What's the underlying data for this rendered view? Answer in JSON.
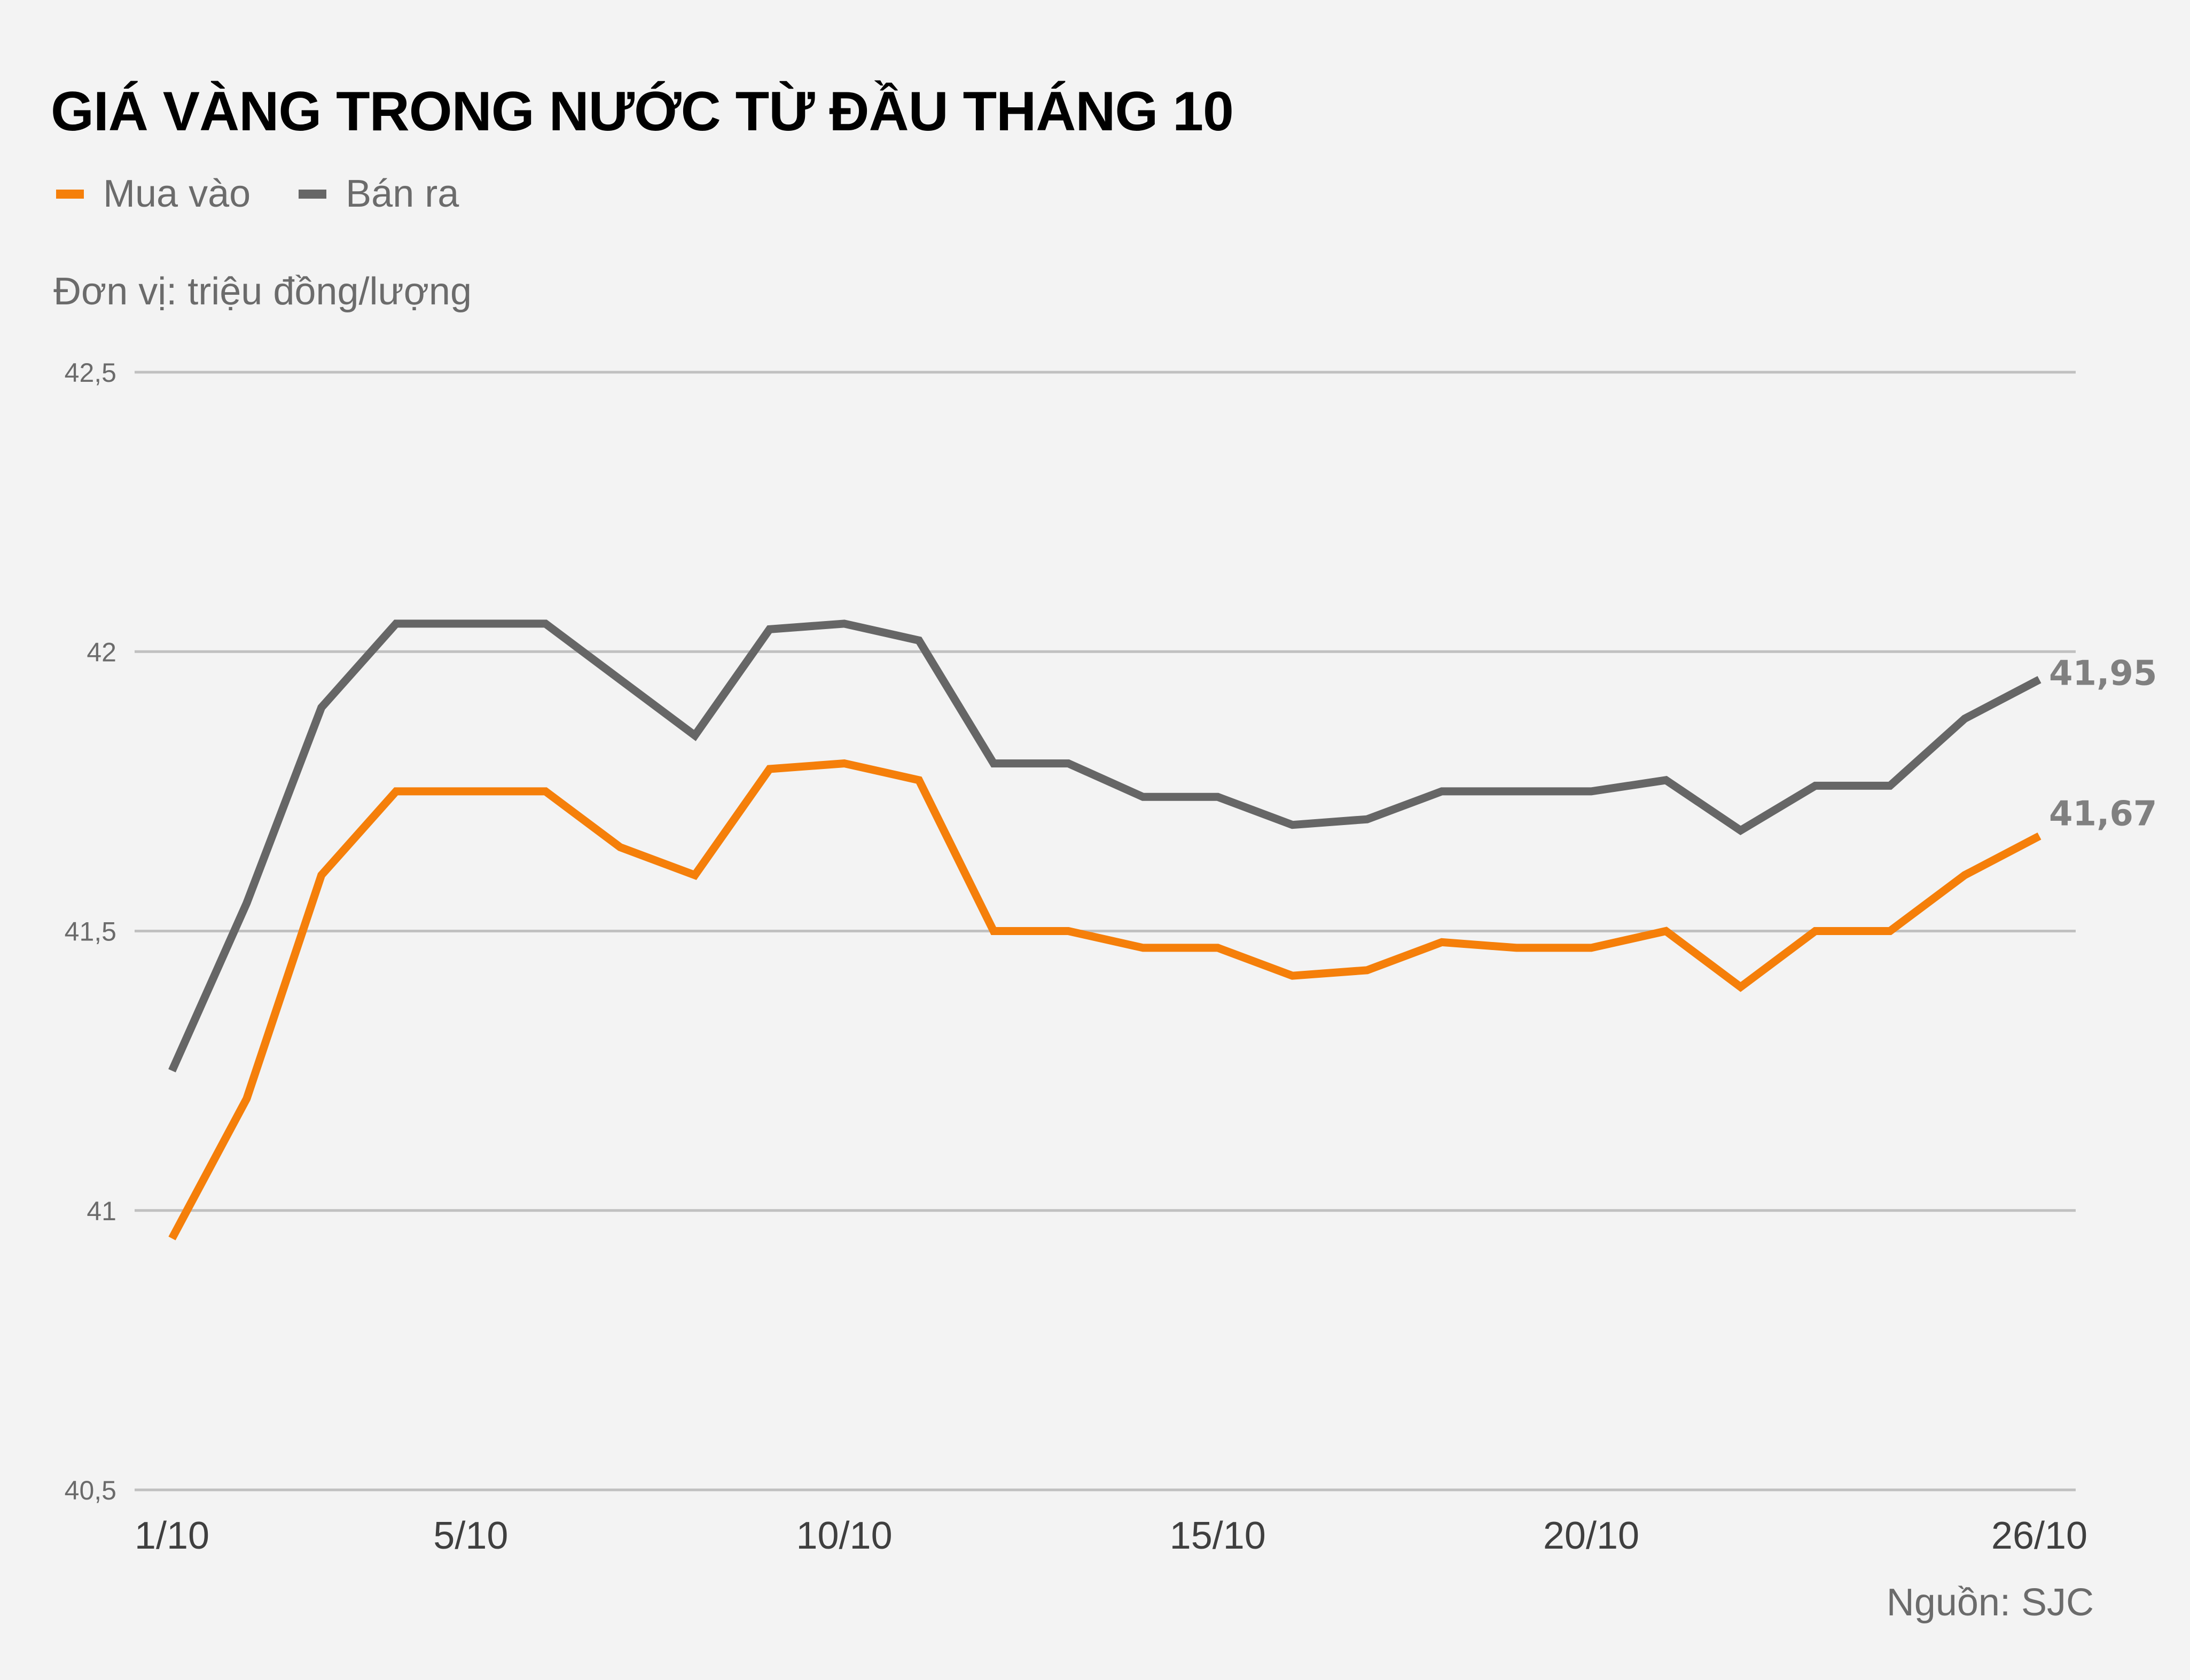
{
  "header": {
    "title": "GIÁ VÀNG TRONG NƯỚC TỪ ĐẦU THÁNG 10",
    "unit": "Đơn vị: triệu đồng/lượng",
    "source": "Nguồn: SJC"
  },
  "legend": [
    {
      "label": "Mua vào",
      "color": "#f57f0a"
    },
    {
      "label": "Bán ra",
      "color": "#666666"
    }
  ],
  "end_labels": {
    "buy": "41,67",
    "sell": "41,95"
  },
  "axis": {
    "y_ticks": [
      {
        "value": 42.5,
        "label": "42,5"
      },
      {
        "value": 42,
        "label": "42"
      },
      {
        "value": 41.5,
        "label": "41,5"
      },
      {
        "value": 41,
        "label": "41"
      },
      {
        "value": 40.5,
        "label": "40,5"
      }
    ],
    "x_ticks": [
      {
        "index": 0,
        "label": "1/10"
      },
      {
        "index": 4,
        "label": "5/10"
      },
      {
        "index": 9,
        "label": "10/10"
      },
      {
        "index": 14,
        "label": "15/10"
      },
      {
        "index": 19,
        "label": "20/10"
      },
      {
        "index": 25,
        "label": "26/10"
      }
    ]
  },
  "colors": {
    "buy": "#f57f0a",
    "sell": "#666666",
    "grid": "#c0c0c0",
    "background": "#f3f3f3"
  },
  "chart_data": {
    "type": "line",
    "title": "GIÁ VÀNG TRONG NƯỚC TỪ ĐẦU THÁNG 10",
    "subtitle": "Đơn vị: triệu đồng/lượng",
    "xlabel": "",
    "ylabel": "triệu đồng/lượng",
    "ylim": [
      40.5,
      42.5
    ],
    "grid": true,
    "legend_position": "top-left",
    "x": [
      "1/10",
      "2/10",
      "3/10",
      "4/10",
      "5/10",
      "6/10",
      "7/10",
      "8/10",
      "9/10",
      "10/10",
      "11/10",
      "12/10",
      "13/10",
      "14/10",
      "15/10",
      "16/10",
      "17/10",
      "18/10",
      "19/10",
      "20/10",
      "21/10",
      "22/10",
      "23/10",
      "24/10",
      "25/10",
      "26/10"
    ],
    "series": [
      {
        "name": "Mua vào",
        "color": "#f57f0a",
        "values": [
          40.95,
          41.2,
          41.6,
          41.75,
          41.75,
          41.75,
          41.65,
          41.6,
          41.79,
          41.8,
          41.77,
          41.5,
          41.5,
          41.47,
          41.47,
          41.42,
          41.43,
          41.48,
          41.47,
          41.47,
          41.5,
          41.4,
          41.5,
          41.5,
          41.6,
          41.67
        ]
      },
      {
        "name": "Bán ra",
        "color": "#666666",
        "values": [
          41.25,
          41.55,
          41.9,
          42.05,
          42.05,
          42.05,
          41.95,
          41.85,
          42.04,
          42.05,
          42.02,
          41.8,
          41.8,
          41.74,
          41.74,
          41.69,
          41.7,
          41.75,
          41.75,
          41.75,
          41.77,
          41.68,
          41.76,
          41.76,
          41.88,
          41.95
        ]
      }
    ],
    "annotations": [
      {
        "x": "26/10",
        "series": "Bán ra",
        "text": "41,95"
      },
      {
        "x": "26/10",
        "series": "Mua vào",
        "text": "41,67"
      }
    ],
    "source": "Nguồn: SJC"
  }
}
